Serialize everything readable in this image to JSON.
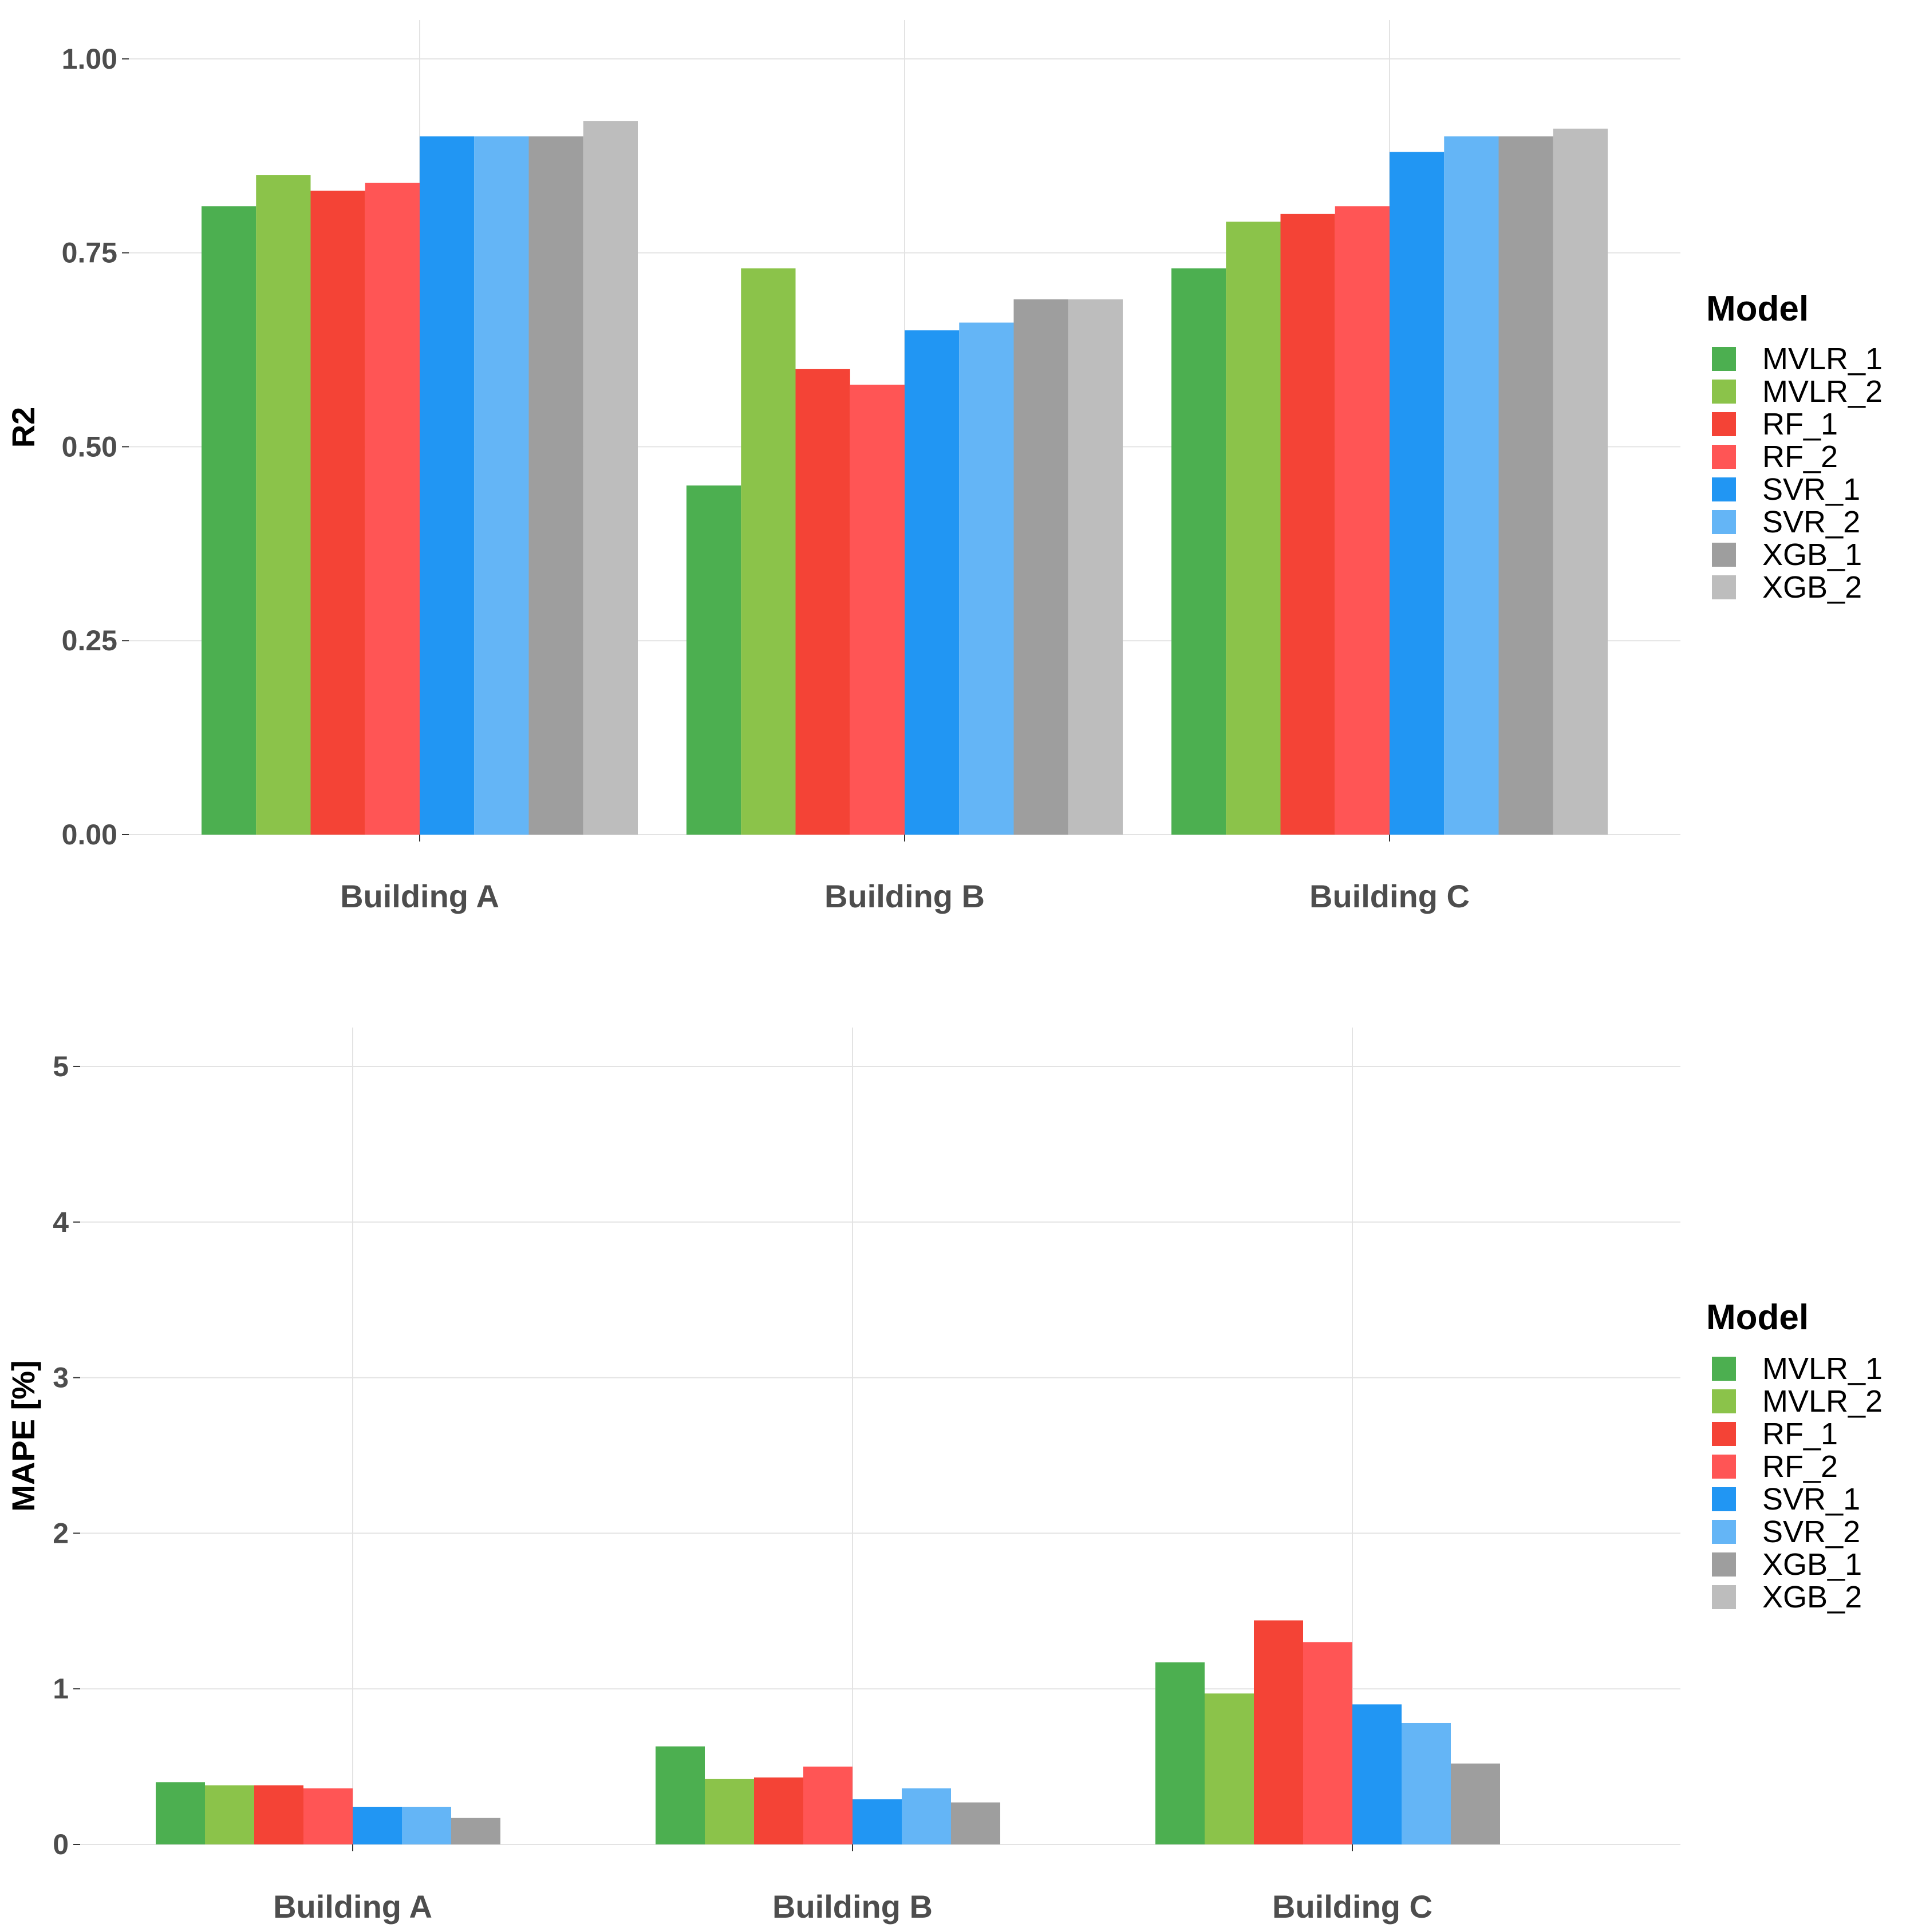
{
  "colors": {
    "MVLR_1": "#4caf50",
    "MVLR_2": "#8bc34a",
    "RF_1": "#f44336",
    "RF_2": "#ff5555",
    "SVR_1": "#2196f3",
    "SVR_2": "#64b5f6",
    "XGB_1": "#9e9e9e",
    "XGB_2": "#bdbdbd"
  },
  "chart_data": [
    {
      "type": "bar",
      "title": "",
      "xlabel": "",
      "ylabel": "R2",
      "ylim": [
        0,
        1.05
      ],
      "yticks": [
        0.0,
        0.25,
        0.5,
        0.75,
        1.0
      ],
      "ytick_labels": [
        "0.00",
        "0.25",
        "0.50",
        "0.75",
        "1.00"
      ],
      "grid": true,
      "categories": [
        "Building A",
        "Building B",
        "Building C"
      ],
      "legend_title": "Model",
      "legend_position": "right",
      "series": [
        {
          "name": "MVLR_1",
          "values": [
            0.81,
            0.45,
            0.73
          ]
        },
        {
          "name": "MVLR_2",
          "values": [
            0.85,
            0.73,
            0.79
          ]
        },
        {
          "name": "RF_1",
          "values": [
            0.83,
            0.6,
            0.8
          ]
        },
        {
          "name": "RF_2",
          "values": [
            0.84,
            0.58,
            0.81
          ]
        },
        {
          "name": "SVR_1",
          "values": [
            0.9,
            0.65,
            0.88
          ]
        },
        {
          "name": "SVR_2",
          "values": [
            0.9,
            0.66,
            0.9
          ]
        },
        {
          "name": "XGB_1",
          "values": [
            0.9,
            0.69,
            0.9
          ]
        },
        {
          "name": "XGB_2",
          "values": [
            0.92,
            0.69,
            0.91
          ]
        }
      ]
    },
    {
      "type": "bar",
      "title": "",
      "xlabel": "",
      "ylabel": "MAPE [%]",
      "ylim": [
        0,
        5.25
      ],
      "yticks": [
        0,
        1,
        2,
        3,
        4,
        5
      ],
      "ytick_labels": [
        "0",
        "1",
        "2",
        "3",
        "4",
        "5"
      ],
      "grid": true,
      "categories": [
        "Building A",
        "Building B",
        "Building C"
      ],
      "legend_title": "Model",
      "legend_position": "right",
      "series": [
        {
          "name": "MVLR_1",
          "values": [
            0.4,
            0.63,
            1.17
          ]
        },
        {
          "name": "MVLR_2",
          "values": [
            0.38,
            0.42,
            0.97
          ]
        },
        {
          "name": "RF_1",
          "values": [
            0.38,
            0.43,
            1.44
          ]
        },
        {
          "name": "RF_2",
          "values": [
            0.36,
            0.5,
            1.3
          ]
        },
        {
          "name": "SVR_1",
          "values": [
            0.24,
            0.29,
            0.9
          ]
        },
        {
          "name": "SVR_2",
          "values": [
            0.24,
            0.36,
            0.78
          ]
        },
        {
          "name": "XGB_1",
          "values": [
            0.17,
            0.27,
            0.52
          ]
        },
        {
          "name": "XGB_2",
          "values": [
            0.0,
            0.0,
            0.0
          ]
        }
      ]
    }
  ]
}
